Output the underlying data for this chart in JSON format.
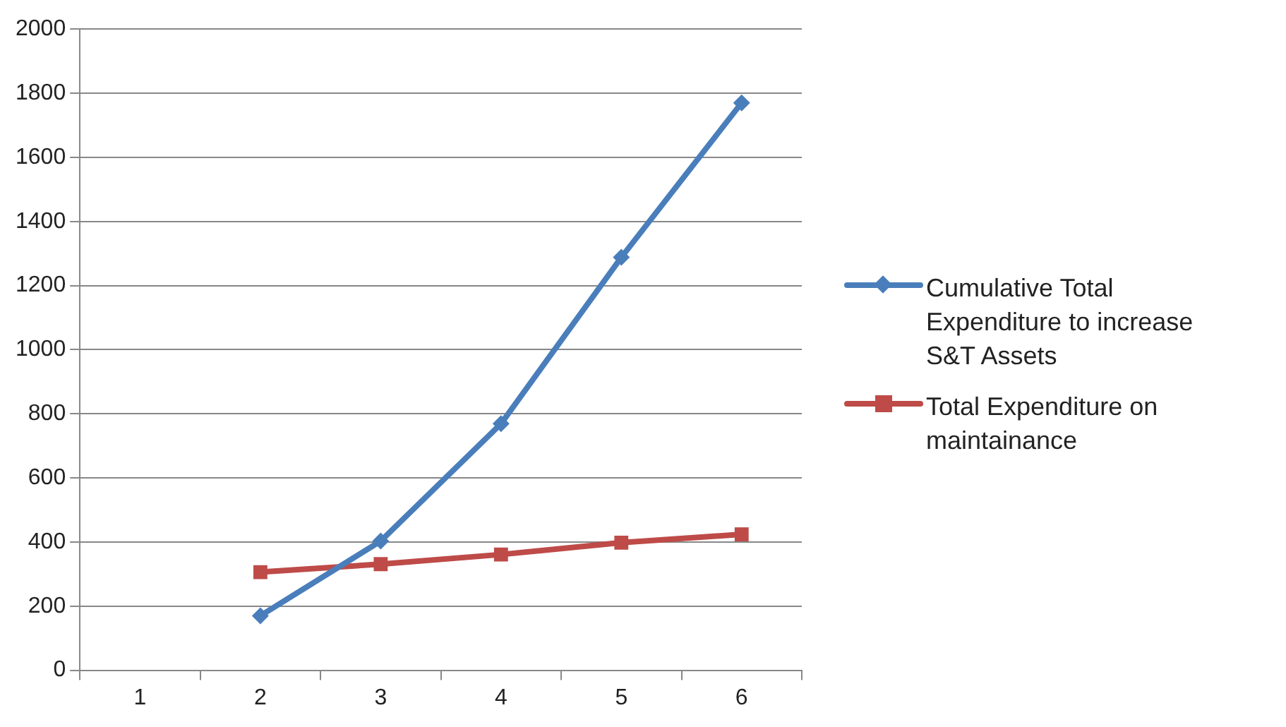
{
  "chart_data": {
    "type": "line",
    "categories": [
      "1",
      "2",
      "3",
      "4",
      "5",
      "6"
    ],
    "series": [
      {
        "name": "Cumulative Total Expenditure to increase S&T Assets",
        "color": "#4a7ebb",
        "marker": "diamond",
        "values": [
          null,
          170,
          403,
          769,
          1288,
          1770
        ]
      },
      {
        "name": "Total Expenditure on maintainance",
        "color": "#be4b48",
        "marker": "square",
        "values": [
          null,
          306,
          331,
          361,
          398,
          424
        ]
      }
    ],
    "ylim": [
      0,
      2000
    ],
    "yticks": [
      0,
      200,
      400,
      600,
      800,
      1000,
      1200,
      1400,
      1600,
      1800,
      2000
    ],
    "grid": "y",
    "legend": "right",
    "line_style": "solid"
  }
}
